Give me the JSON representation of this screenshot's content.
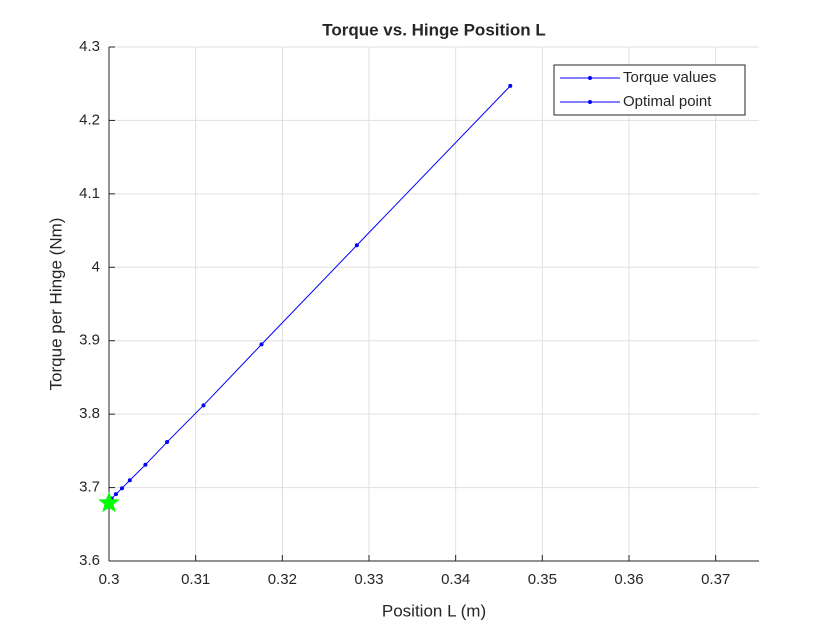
{
  "chart_data": {
    "type": "line",
    "title": "Torque vs. Hinge Position L",
    "x_label": "Position L (m)",
    "y_label": "Torque per Hinge (Nm)",
    "series": [
      {
        "name": "Torque values",
        "color": "#0000ff",
        "marker": "dot",
        "x": [
          0.3,
          0.3003,
          0.3008,
          0.3015,
          0.3024,
          0.3042,
          0.3067,
          0.3109,
          0.3176,
          0.3286,
          0.3463
        ],
        "values": [
          3.679,
          3.685,
          3.691,
          3.699,
          3.71,
          3.731,
          3.762,
          3.812,
          3.895,
          4.03,
          4.247
        ]
      },
      {
        "name": "Optimal point",
        "color": "#0000ff",
        "marker_color": "#00ff00",
        "marker": "star",
        "x": [
          0.3
        ],
        "values": [
          3.679
        ]
      }
    ],
    "xlim": [
      0.3,
      0.375
    ],
    "xticks": [
      0.3,
      0.31,
      0.32,
      0.33,
      0.34,
      0.35,
      0.36,
      0.37
    ],
    "ylim": [
      3.6,
      4.3
    ],
    "yticks": [
      3.6,
      3.7,
      3.8,
      3.9,
      4,
      4.1,
      4.2,
      4.3
    ],
    "grid": true,
    "legend": "northeast"
  }
}
